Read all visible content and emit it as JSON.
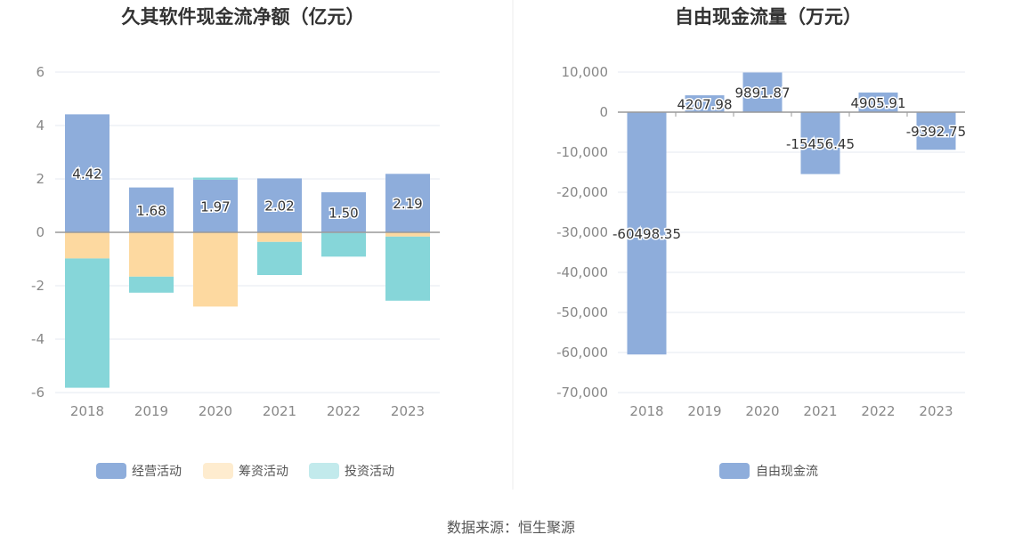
{
  "source": "数据来源：恒生聚源",
  "colors": {
    "operating": "#8eaddb",
    "financing": "#fdd9a0",
    "investing": "#86d6d9",
    "fcf": "#8eaddb",
    "grid": "#e6e9f2",
    "axis": "#999999"
  },
  "chart_data": [
    {
      "type": "bar",
      "stacked": true,
      "title": "久其软件现金流净额（亿元）",
      "categories": [
        "2018",
        "2019",
        "2020",
        "2021",
        "2022",
        "2023"
      ],
      "ylim": [
        -6,
        6
      ],
      "yticks": [
        6,
        4,
        2,
        0,
        -2,
        -4,
        -6
      ],
      "series": [
        {
          "name": "经营活动",
          "values": [
            4.42,
            1.68,
            1.97,
            2.02,
            1.5,
            2.19
          ]
        },
        {
          "name": "筹资活动",
          "values": [
            -0.98,
            -1.66,
            -2.78,
            -0.36,
            -0.02,
            -0.16
          ]
        },
        {
          "name": "投资活动",
          "values": [
            -4.84,
            -0.6,
            0.08,
            -1.24,
            -0.89,
            -2.4
          ]
        }
      ],
      "data_labels": [
        "4.42",
        "1.68",
        "1.97",
        "2.02",
        "1.50",
        "2.19"
      ],
      "legend_position": "bottom"
    },
    {
      "type": "bar",
      "title": "自由现金流量（万元）",
      "categories": [
        "2018",
        "2019",
        "2020",
        "2021",
        "2022",
        "2023"
      ],
      "ylim": [
        -70000,
        10000
      ],
      "yticks": [
        10000,
        0,
        -10000,
        -20000,
        -30000,
        -40000,
        -50000,
        -60000,
        -70000
      ],
      "ytick_labels": [
        "10,000",
        "0",
        "-10,000",
        "-20,000",
        "-30,000",
        "-40,000",
        "-50,000",
        "-60,000",
        "-70,000"
      ],
      "series": [
        {
          "name": "自由现金流",
          "values": [
            -60498.35,
            4207.98,
            9891.87,
            -15456.45,
            4905.91,
            -9392.75
          ]
        }
      ],
      "data_labels": [
        "-60498.35",
        "4207.98",
        "9891.87",
        "-15456.45",
        "4905.91",
        "-9392.75"
      ],
      "legend_position": "bottom"
    }
  ]
}
